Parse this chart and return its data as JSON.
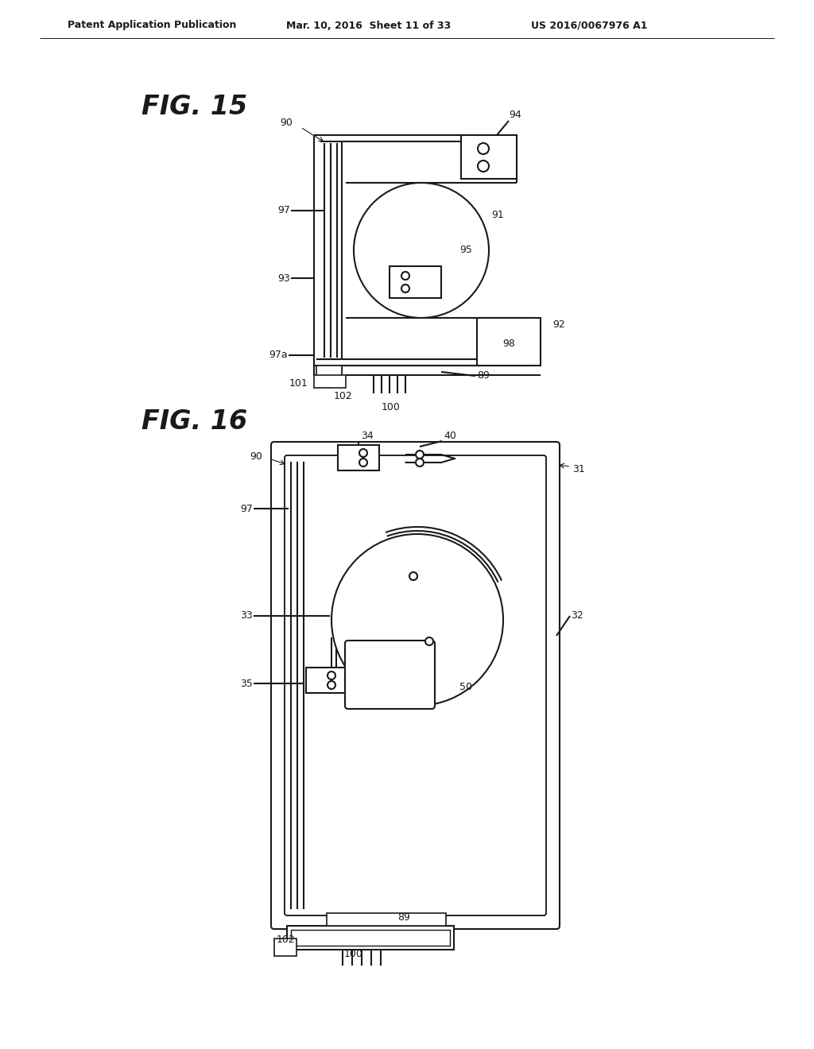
{
  "bg_color": "#ffffff",
  "header_left": "Patent Application Publication",
  "header_center": "Mar. 10, 2016  Sheet 11 of 33",
  "header_right": "US 2016/0067976 A1",
  "fig15_label": "FIG. 15",
  "fig16_label": "FIG. 16",
  "line_color": "#1a1a1a",
  "line_width": 1.5
}
